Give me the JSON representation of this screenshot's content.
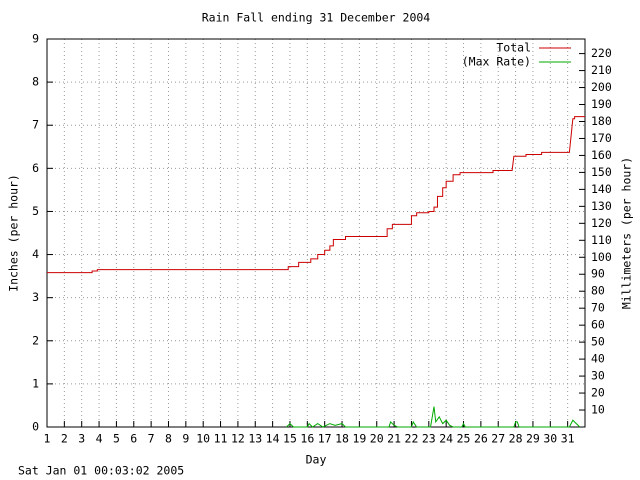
{
  "chart_data": {
    "type": "line",
    "title": "Rain Fall ending 31 December 2004",
    "x_label": "Day",
    "y_label": "Inches (per hour)",
    "y2_label": "Millimeters (per hour)",
    "footer": "Sat Jan 01 00:03:02 2005",
    "xlim": [
      1,
      32
    ],
    "xticks": [
      1,
      2,
      3,
      4,
      5,
      6,
      7,
      8,
      9,
      10,
      11,
      12,
      13,
      14,
      15,
      16,
      17,
      18,
      19,
      20,
      21,
      22,
      23,
      24,
      25,
      26,
      27,
      28,
      29,
      30,
      31
    ],
    "ylim": [
      0,
      9
    ],
    "yticks": [
      0,
      1,
      2,
      3,
      4,
      5,
      6,
      7,
      8,
      9
    ],
    "y2lim": [
      0,
      228.6
    ],
    "y2ticks": [
      10,
      20,
      30,
      40,
      50,
      60,
      70,
      80,
      90,
      100,
      110,
      120,
      130,
      140,
      150,
      160,
      170,
      180,
      190,
      200,
      210,
      220
    ],
    "grid": true,
    "legend": "upper right",
    "series": [
      {
        "name": "Total",
        "color": "#cc0000",
        "x": [
          1,
          3.6,
          3.6,
          3.9,
          3.9,
          14.9,
          14.9,
          15.5,
          15.5,
          16.2,
          16.2,
          16.6,
          16.6,
          17.0,
          17.0,
          17.3,
          17.3,
          17.5,
          17.5,
          18.2,
          18.2,
          20.6,
          20.6,
          20.9,
          20.9,
          22.0,
          22.0,
          22.3,
          22.3,
          23.0,
          23.0,
          23.3,
          23.3,
          23.5,
          23.5,
          23.8,
          23.8,
          24.0,
          24.0,
          24.4,
          24.4,
          24.8,
          24.8,
          26.7,
          26.7,
          27.8,
          27.9,
          28.6,
          28.6,
          29.5,
          29.5,
          31.1,
          31.3,
          31.4,
          31.4,
          32
        ],
        "values": [
          3.58,
          3.58,
          3.62,
          3.62,
          3.65,
          3.65,
          3.72,
          3.72,
          3.82,
          3.82,
          3.9,
          3.9,
          4.0,
          4.0,
          4.1,
          4.1,
          4.2,
          4.2,
          4.35,
          4.35,
          4.42,
          4.42,
          4.6,
          4.6,
          4.7,
          4.7,
          4.9,
          4.9,
          4.97,
          4.97,
          5.0,
          5.0,
          5.1,
          5.1,
          5.35,
          5.35,
          5.55,
          5.55,
          5.7,
          5.7,
          5.85,
          5.85,
          5.9,
          5.9,
          5.95,
          5.95,
          6.28,
          6.28,
          6.32,
          6.32,
          6.37,
          6.37,
          7.15,
          7.15,
          7.2,
          7.2
        ]
      },
      {
        "name": "(Max Rate)",
        "color": "#00aa00",
        "axis": "y2",
        "x": [
          14.8,
          15.0,
          15.2,
          16.0,
          16.1,
          16.3,
          16.6,
          16.9,
          17.3,
          17.6,
          18.0,
          18.2,
          20.7,
          20.8,
          21.0,
          21.2,
          22.0,
          22.1,
          22.3,
          23.1,
          23.3,
          23.4,
          23.6,
          23.8,
          24.0,
          24.2,
          24.4,
          24.9,
          25.0,
          25.1,
          27.9,
          28.0,
          28.1,
          28.2,
          31.1,
          31.3,
          31.5,
          31.7
        ],
        "values": [
          0,
          2,
          0,
          0,
          2,
          0,
          2,
          0,
          2,
          1,
          2,
          0,
          0,
          3,
          1,
          0,
          0,
          3,
          0,
          0,
          12,
          3,
          6,
          2,
          4,
          1,
          0,
          0,
          2,
          0,
          0,
          3,
          3,
          0,
          0,
          4,
          2,
          0
        ]
      }
    ]
  }
}
